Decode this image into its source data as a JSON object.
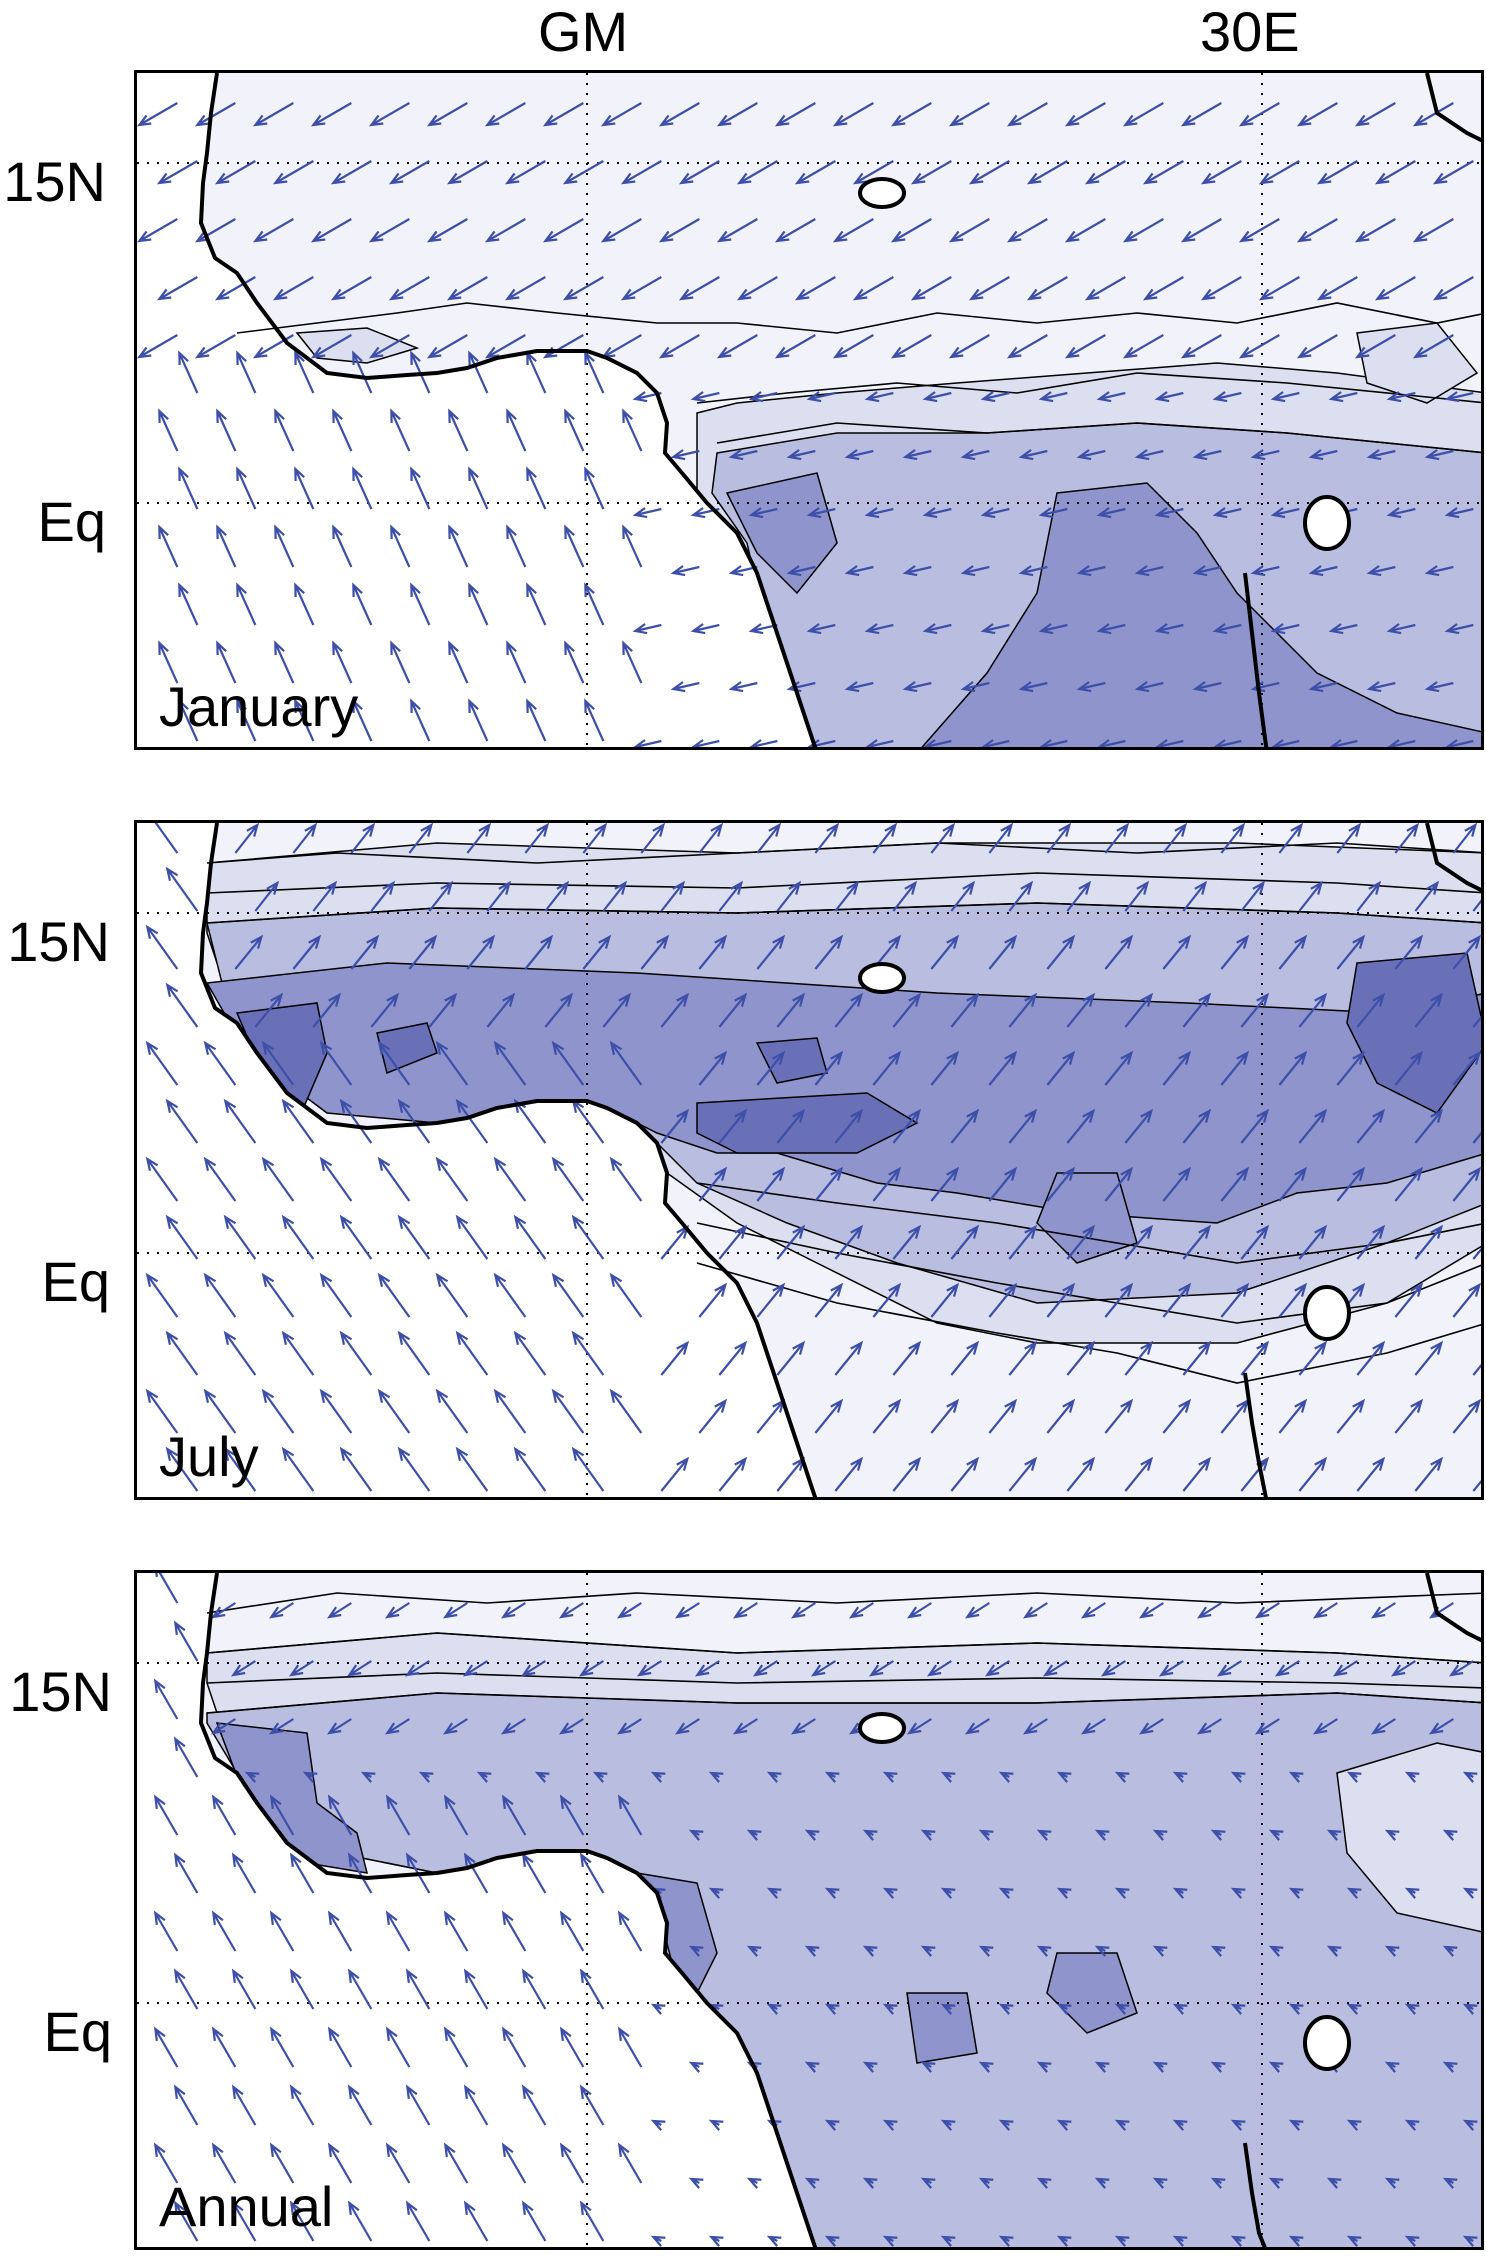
{
  "header": {
    "longitude_labels": [
      "GM",
      "30E"
    ]
  },
  "latitude_labels": [
    "15N",
    "Eq"
  ],
  "panels": [
    {
      "id": "january",
      "label": "January"
    },
    {
      "id": "july",
      "label": "July"
    },
    {
      "id": "annual",
      "label": "Annual"
    }
  ],
  "colors": {
    "ocean": "#ffffff",
    "land_lightest": "#f2f3fa",
    "shade_1": "#dcdff0",
    "shade_2": "#b9bde0",
    "shade_3": "#8f94cc",
    "shade_4": "#6a70b8",
    "arrow": "#3d4fa8",
    "coastline": "#000000"
  }
}
